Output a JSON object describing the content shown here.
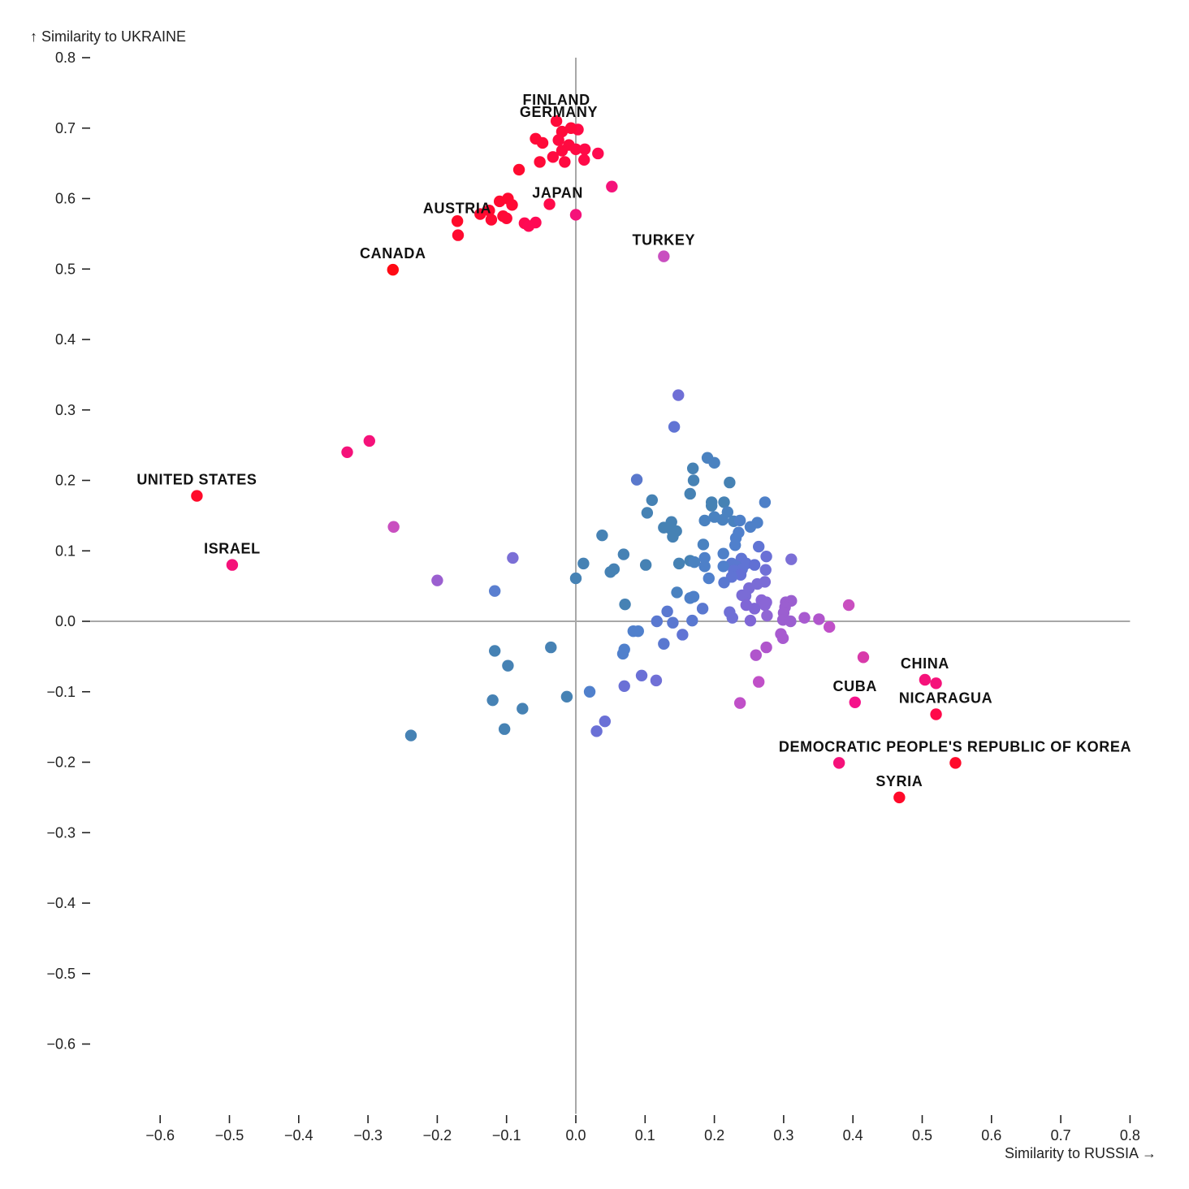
{
  "chart_data": {
    "type": "scatter",
    "title": "",
    "xlabel": "Similarity to RUSSIA →",
    "ylabel": "↑ Similarity to UKRAINE",
    "xlim": [
      -0.6,
      0.8
    ],
    "ylim": [
      -0.6,
      0.8
    ],
    "x_ticks": [
      "−0.6",
      "−0.5",
      "−0.4",
      "−0.3",
      "−0.2",
      "−0.1",
      "0.0",
      "0.1",
      "0.2",
      "0.3",
      "0.4",
      "0.5",
      "0.6",
      "0.7",
      "0.8"
    ],
    "x_tick_values": [
      -0.6,
      -0.5,
      -0.4,
      -0.3,
      -0.2,
      -0.1,
      0.0,
      0.1,
      0.2,
      0.3,
      0.4,
      0.5,
      0.6,
      0.7,
      0.8
    ],
    "y_ticks": [
      "0.8",
      "0.7",
      "0.6",
      "0.5",
      "0.4",
      "0.3",
      "0.2",
      "0.1",
      "0.0",
      "−0.1",
      "−0.2",
      "−0.3",
      "−0.4",
      "−0.5",
      "−0.6"
    ],
    "y_tick_values": [
      0.8,
      0.7,
      0.6,
      0.5,
      0.4,
      0.3,
      0.2,
      0.1,
      0.0,
      -0.1,
      -0.2,
      -0.3,
      -0.4,
      -0.5,
      -0.6
    ],
    "grid": false,
    "reference_lines": [
      "x=0",
      "y=0"
    ],
    "color_encoding": "diverging: blue (low) → purple → magenta → red (high)",
    "colors": {
      "low": "#4682b4",
      "mid": "#7b6fd6",
      "high_mid": "#c94fc0",
      "high": "#ff0a2a"
    },
    "labeled_points": [
      {
        "name": "FINLAND",
        "x": -0.028,
        "y": 0.71,
        "color": "#ff0a3a"
      },
      {
        "name": "GERMANY",
        "x": -0.007,
        "y": 0.7,
        "color": "#ff0a3a"
      },
      {
        "name": "AUSTRIA",
        "x": -0.171,
        "y": 0.568,
        "color": "#ff0a2a"
      },
      {
        "name": "JAPAN",
        "x": -0.038,
        "y": 0.592,
        "color": "#ff0a4a"
      },
      {
        "name": "CANADA",
        "x": -0.264,
        "y": 0.499,
        "color": "#ff0a14"
      },
      {
        "name": "TURKEY",
        "x": 0.127,
        "y": 0.518,
        "color": "#c94fc0"
      },
      {
        "name": "UNITED STATES",
        "x": -0.547,
        "y": 0.178,
        "color": "#ff0a2a"
      },
      {
        "name": "ISRAEL",
        "x": -0.496,
        "y": 0.08,
        "color": "#f5127a"
      },
      {
        "name": "CHINA",
        "x": 0.504,
        "y": -0.083,
        "color": "#f5127a"
      },
      {
        "name": "CUBA",
        "x": 0.403,
        "y": -0.115,
        "color": "#f5128a"
      },
      {
        "name": "NICARAGUA",
        "x": 0.52,
        "y": -0.132,
        "color": "#ff0a4a"
      },
      {
        "name": "DEMOCRATIC PEOPLE'S REPUBLIC OF KOREA",
        "x": 0.548,
        "y": -0.201,
        "color": "#ff0a2a"
      },
      {
        "name": "SYRIA",
        "x": 0.467,
        "y": -0.25,
        "color": "#ff0a2a"
      }
    ],
    "extra_labeled_points": [
      {
        "name": "DPRK-second-point",
        "x": 0.38,
        "y": -0.201,
        "color": "#f5127a"
      }
    ],
    "points": [
      {
        "x": -0.02,
        "y": 0.695,
        "c": "#ff0a3a"
      },
      {
        "x": 0.003,
        "y": 0.698,
        "c": "#ff0a44"
      },
      {
        "x": -0.058,
        "y": 0.685,
        "c": "#ff0a38"
      },
      {
        "x": -0.048,
        "y": 0.679,
        "c": "#ff0a38"
      },
      {
        "x": -0.025,
        "y": 0.683,
        "c": "#ff0a40"
      },
      {
        "x": -0.01,
        "y": 0.676,
        "c": "#ff0a40"
      },
      {
        "x": 0.0,
        "y": 0.67,
        "c": "#ff0a44"
      },
      {
        "x": 0.013,
        "y": 0.67,
        "c": "#ff0a48"
      },
      {
        "x": -0.02,
        "y": 0.668,
        "c": "#ff0a40"
      },
      {
        "x": 0.032,
        "y": 0.664,
        "c": "#ff0a50"
      },
      {
        "x": -0.033,
        "y": 0.659,
        "c": "#ff0a40"
      },
      {
        "x": -0.052,
        "y": 0.652,
        "c": "#ff0a38"
      },
      {
        "x": -0.016,
        "y": 0.652,
        "c": "#ff0a40"
      },
      {
        "x": 0.012,
        "y": 0.655,
        "c": "#ff0a48"
      },
      {
        "x": -0.082,
        "y": 0.641,
        "c": "#ff0a30"
      },
      {
        "x": 0.052,
        "y": 0.617,
        "c": "#f5127a"
      },
      {
        "x": -0.11,
        "y": 0.596,
        "c": "#ff0a30"
      },
      {
        "x": -0.098,
        "y": 0.6,
        "c": "#ff0a30"
      },
      {
        "x": -0.092,
        "y": 0.591,
        "c": "#ff0a34"
      },
      {
        "x": -0.125,
        "y": 0.583,
        "c": "#ff0a30"
      },
      {
        "x": -0.138,
        "y": 0.578,
        "c": "#ff0a30"
      },
      {
        "x": -0.105,
        "y": 0.575,
        "c": "#ff0a34"
      },
      {
        "x": -0.122,
        "y": 0.57,
        "c": "#ff0a34"
      },
      {
        "x": -0.1,
        "y": 0.572,
        "c": "#ff0a38"
      },
      {
        "x": -0.074,
        "y": 0.565,
        "c": "#ff0a50"
      },
      {
        "x": -0.068,
        "y": 0.561,
        "c": "#ff0a55"
      },
      {
        "x": -0.058,
        "y": 0.566,
        "c": "#ff0a55"
      },
      {
        "x": 0.0,
        "y": 0.577,
        "c": "#f5127a"
      },
      {
        "x": -0.17,
        "y": 0.548,
        "c": "#ff0a30"
      },
      {
        "x": -0.33,
        "y": 0.24,
        "c": "#f5127a"
      },
      {
        "x": -0.298,
        "y": 0.256,
        "c": "#f5127a"
      },
      {
        "x": -0.263,
        "y": 0.134,
        "c": "#c94fc0"
      },
      {
        "x": -0.2,
        "y": 0.058,
        "c": "#9b5fd0"
      },
      {
        "x": -0.091,
        "y": 0.09,
        "c": "#7b6fd6"
      },
      {
        "x": -0.117,
        "y": 0.043,
        "c": "#5a7fd0"
      },
      {
        "x": 0.148,
        "y": 0.321,
        "c": "#6f6fd6"
      },
      {
        "x": 0.142,
        "y": 0.276,
        "c": "#6074d4"
      },
      {
        "x": 0.19,
        "y": 0.232,
        "c": "#4b82c0"
      },
      {
        "x": 0.2,
        "y": 0.225,
        "c": "#4b82c0"
      },
      {
        "x": 0.169,
        "y": 0.217,
        "c": "#4682b4"
      },
      {
        "x": 0.17,
        "y": 0.2,
        "c": "#4682b4"
      },
      {
        "x": 0.222,
        "y": 0.197,
        "c": "#4682b4"
      },
      {
        "x": 0.088,
        "y": 0.201,
        "c": "#5a78cc"
      },
      {
        "x": 0.165,
        "y": 0.181,
        "c": "#4682b4"
      },
      {
        "x": 0.11,
        "y": 0.172,
        "c": "#4682b4"
      },
      {
        "x": 0.196,
        "y": 0.169,
        "c": "#4682b4"
      },
      {
        "x": 0.214,
        "y": 0.169,
        "c": "#4682b4"
      },
      {
        "x": 0.273,
        "y": 0.169,
        "c": "#4e80c8"
      },
      {
        "x": 0.196,
        "y": 0.164,
        "c": "#4682b4"
      },
      {
        "x": 0.103,
        "y": 0.154,
        "c": "#4682b4"
      },
      {
        "x": 0.219,
        "y": 0.155,
        "c": "#4a82c0"
      },
      {
        "x": 0.2,
        "y": 0.148,
        "c": "#4a82c0"
      },
      {
        "x": 0.212,
        "y": 0.144,
        "c": "#4a82c0"
      },
      {
        "x": 0.186,
        "y": 0.143,
        "c": "#4a82c0"
      },
      {
        "x": 0.228,
        "y": 0.142,
        "c": "#4a82c0"
      },
      {
        "x": 0.237,
        "y": 0.143,
        "c": "#4e80c8"
      },
      {
        "x": 0.262,
        "y": 0.14,
        "c": "#4e80c8"
      },
      {
        "x": 0.252,
        "y": 0.134,
        "c": "#4e80c8"
      },
      {
        "x": 0.138,
        "y": 0.141,
        "c": "#4682b4"
      },
      {
        "x": 0.127,
        "y": 0.133,
        "c": "#4682b4"
      },
      {
        "x": 0.136,
        "y": 0.132,
        "c": "#4682b4"
      },
      {
        "x": 0.145,
        "y": 0.128,
        "c": "#4682b4"
      },
      {
        "x": 0.14,
        "y": 0.12,
        "c": "#4682b4"
      },
      {
        "x": 0.235,
        "y": 0.126,
        "c": "#5080cc"
      },
      {
        "x": 0.231,
        "y": 0.118,
        "c": "#5080cc"
      },
      {
        "x": 0.038,
        "y": 0.122,
        "c": "#4682b4"
      },
      {
        "x": 0.184,
        "y": 0.109,
        "c": "#4a82c0"
      },
      {
        "x": 0.23,
        "y": 0.108,
        "c": "#5080cc"
      },
      {
        "x": 0.264,
        "y": 0.106,
        "c": "#6074d4"
      },
      {
        "x": 0.213,
        "y": 0.096,
        "c": "#4e80c8"
      },
      {
        "x": 0.069,
        "y": 0.095,
        "c": "#4682b4"
      },
      {
        "x": 0.275,
        "y": 0.092,
        "c": "#6a70d6"
      },
      {
        "x": 0.186,
        "y": 0.09,
        "c": "#4e80c8"
      },
      {
        "x": 0.311,
        "y": 0.088,
        "c": "#7b6fd6"
      },
      {
        "x": 0.239,
        "y": 0.089,
        "c": "#6074d4"
      },
      {
        "x": 0.165,
        "y": 0.086,
        "c": "#4682b4"
      },
      {
        "x": 0.171,
        "y": 0.084,
        "c": "#4a82c0"
      },
      {
        "x": 0.149,
        "y": 0.082,
        "c": "#4682b4"
      },
      {
        "x": 0.011,
        "y": 0.082,
        "c": "#4682b4"
      },
      {
        "x": 0.101,
        "y": 0.08,
        "c": "#4682b4"
      },
      {
        "x": 0.225,
        "y": 0.082,
        "c": "#5a78d0"
      },
      {
        "x": 0.246,
        "y": 0.082,
        "c": "#6074d4"
      },
      {
        "x": 0.258,
        "y": 0.08,
        "c": "#6070d4"
      },
      {
        "x": 0.232,
        "y": 0.078,
        "c": "#5a78d0"
      },
      {
        "x": 0.213,
        "y": 0.078,
        "c": "#5080cc"
      },
      {
        "x": 0.186,
        "y": 0.078,
        "c": "#4e80c8"
      },
      {
        "x": 0.24,
        "y": 0.074,
        "c": "#6074d4"
      },
      {
        "x": 0.228,
        "y": 0.072,
        "c": "#6074d4"
      },
      {
        "x": 0.055,
        "y": 0.074,
        "c": "#4682b4"
      },
      {
        "x": 0.05,
        "y": 0.07,
        "c": "#4682b4"
      },
      {
        "x": 0.274,
        "y": 0.073,
        "c": "#7070d6"
      },
      {
        "x": 0.238,
        "y": 0.066,
        "c": "#6470d6"
      },
      {
        "x": 0.225,
        "y": 0.063,
        "c": "#6074d4"
      },
      {
        "x": 0.192,
        "y": 0.061,
        "c": "#5080cc"
      },
      {
        "x": 0.0,
        "y": 0.061,
        "c": "#4682b4"
      },
      {
        "x": 0.273,
        "y": 0.056,
        "c": "#7a6cd6"
      },
      {
        "x": 0.262,
        "y": 0.053,
        "c": "#7a6cd6"
      },
      {
        "x": 0.214,
        "y": 0.055,
        "c": "#5a78d0"
      },
      {
        "x": 0.25,
        "y": 0.047,
        "c": "#7a6cd6"
      },
      {
        "x": 0.146,
        "y": 0.041,
        "c": "#4a82c0"
      },
      {
        "x": 0.245,
        "y": 0.036,
        "c": "#7a6cd6"
      },
      {
        "x": 0.17,
        "y": 0.035,
        "c": "#4e80c8"
      },
      {
        "x": 0.165,
        "y": 0.033,
        "c": "#4e80c8"
      },
      {
        "x": 0.24,
        "y": 0.037,
        "c": "#7a6cd6"
      },
      {
        "x": 0.268,
        "y": 0.03,
        "c": "#8a66d6"
      },
      {
        "x": 0.275,
        "y": 0.027,
        "c": "#8a66d6"
      },
      {
        "x": 0.303,
        "y": 0.027,
        "c": "#9b5fd0"
      },
      {
        "x": 0.311,
        "y": 0.029,
        "c": "#9b5fd0"
      },
      {
        "x": 0.302,
        "y": 0.02,
        "c": "#9b5fd0"
      },
      {
        "x": 0.071,
        "y": 0.024,
        "c": "#4682b4"
      },
      {
        "x": 0.246,
        "y": 0.023,
        "c": "#8066d6"
      },
      {
        "x": 0.273,
        "y": 0.023,
        "c": "#8a66d6"
      },
      {
        "x": 0.394,
        "y": 0.023,
        "c": "#c94fc0"
      },
      {
        "x": 0.258,
        "y": 0.018,
        "c": "#8066d6"
      },
      {
        "x": 0.183,
        "y": 0.018,
        "c": "#5a78d0"
      },
      {
        "x": 0.132,
        "y": 0.014,
        "c": "#5a78d0"
      },
      {
        "x": 0.222,
        "y": 0.013,
        "c": "#7070d6"
      },
      {
        "x": 0.3,
        "y": 0.012,
        "c": "#9b5fd0"
      },
      {
        "x": 0.276,
        "y": 0.008,
        "c": "#9066d4"
      },
      {
        "x": 0.226,
        "y": 0.005,
        "c": "#7070d6"
      },
      {
        "x": 0.33,
        "y": 0.005,
        "c": "#a85ad0"
      },
      {
        "x": 0.351,
        "y": 0.003,
        "c": "#b055cc"
      },
      {
        "x": 0.299,
        "y": 0.002,
        "c": "#9b5fd0"
      },
      {
        "x": 0.31,
        "y": 0.0,
        "c": "#9b5fd0"
      },
      {
        "x": 0.252,
        "y": 0.001,
        "c": "#8066d6"
      },
      {
        "x": 0.168,
        "y": 0.001,
        "c": "#5a78d0"
      },
      {
        "x": 0.117,
        "y": 0.0,
        "c": "#5a78d0"
      },
      {
        "x": 0.14,
        "y": -0.002,
        "c": "#5a78d0"
      },
      {
        "x": 0.366,
        "y": -0.008,
        "c": "#c050c8"
      },
      {
        "x": 0.083,
        "y": -0.014,
        "c": "#5080cc"
      },
      {
        "x": 0.09,
        "y": -0.014,
        "c": "#5080cc"
      },
      {
        "x": 0.296,
        "y": -0.018,
        "c": "#a85ad0"
      },
      {
        "x": 0.154,
        "y": -0.019,
        "c": "#6074d4"
      },
      {
        "x": 0.299,
        "y": -0.024,
        "c": "#a85ad0"
      },
      {
        "x": 0.127,
        "y": -0.032,
        "c": "#5a78d0"
      },
      {
        "x": 0.275,
        "y": -0.037,
        "c": "#b055cc"
      },
      {
        "x": -0.036,
        "y": -0.037,
        "c": "#4682b4"
      },
      {
        "x": 0.07,
        "y": -0.04,
        "c": "#5080cc"
      },
      {
        "x": 0.068,
        "y": -0.046,
        "c": "#5080cc"
      },
      {
        "x": 0.26,
        "y": -0.048,
        "c": "#b055cc"
      },
      {
        "x": 0.415,
        "y": -0.051,
        "c": "#d83aaa"
      },
      {
        "x": -0.117,
        "y": -0.042,
        "c": "#4682b4"
      },
      {
        "x": -0.098,
        "y": -0.063,
        "c": "#4682b4"
      },
      {
        "x": 0.095,
        "y": -0.077,
        "c": "#6a70d6"
      },
      {
        "x": 0.116,
        "y": -0.084,
        "c": "#7070d6"
      },
      {
        "x": 0.264,
        "y": -0.086,
        "c": "#c050c8"
      },
      {
        "x": 0.07,
        "y": -0.092,
        "c": "#6a70d6"
      },
      {
        "x": 0.02,
        "y": -0.1,
        "c": "#5080cc"
      },
      {
        "x": -0.013,
        "y": -0.107,
        "c": "#4682b4"
      },
      {
        "x": 0.52,
        "y": -0.088,
        "c": "#f5127a"
      },
      {
        "x": -0.12,
        "y": -0.112,
        "c": "#4682b4"
      },
      {
        "x": 0.237,
        "y": -0.116,
        "c": "#c050c8"
      },
      {
        "x": -0.077,
        "y": -0.124,
        "c": "#4682b4"
      },
      {
        "x": 0.042,
        "y": -0.142,
        "c": "#6a70d6"
      },
      {
        "x": -0.103,
        "y": -0.153,
        "c": "#4682b4"
      },
      {
        "x": 0.03,
        "y": -0.156,
        "c": "#6a70d6"
      },
      {
        "x": -0.238,
        "y": -0.162,
        "c": "#4682b4"
      }
    ]
  }
}
